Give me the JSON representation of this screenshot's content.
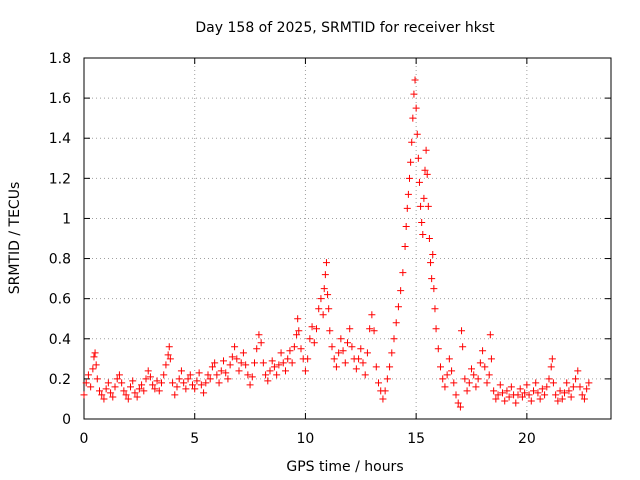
{
  "chart_data": {
    "type": "scatter",
    "title": "Day 158 of 2025, SRMTID for receiver hkst",
    "xlabel": "GPS time / hours",
    "ylabel": "SRMTID / TECUs",
    "xlim": [
      0,
      23.8
    ],
    "ylim": [
      0,
      1.8
    ],
    "xticks": [
      0,
      5,
      10,
      15,
      20
    ],
    "xtick_labels": [
      "0",
      "5",
      "10",
      "15",
      "20"
    ],
    "yticks": [
      0,
      0.2,
      0.4,
      0.6,
      0.8,
      1,
      1.2,
      1.4,
      1.6,
      1.8
    ],
    "ytick_labels": [
      "0",
      "0.2",
      "0.4",
      "0.6",
      "0.8",
      "1",
      "1.2",
      "1.4",
      "1.6",
      "1.8"
    ],
    "grid": true,
    "marker": "+",
    "color": "#ff0000",
    "series": [
      {
        "name": "SRMTID",
        "points": [
          [
            0.0,
            0.12
          ],
          [
            0.1,
            0.18
          ],
          [
            0.2,
            0.22
          ],
          [
            0.3,
            0.16
          ],
          [
            0.4,
            0.25
          ],
          [
            0.45,
            0.31
          ],
          [
            0.5,
            0.33
          ],
          [
            0.55,
            0.27
          ],
          [
            0.6,
            0.2
          ],
          [
            0.7,
            0.14
          ],
          [
            0.8,
            0.12
          ],
          [
            0.9,
            0.1
          ],
          [
            1.0,
            0.15
          ],
          [
            1.1,
            0.18
          ],
          [
            1.2,
            0.13
          ],
          [
            1.3,
            0.11
          ],
          [
            1.4,
            0.16
          ],
          [
            1.5,
            0.2
          ],
          [
            1.6,
            0.22
          ],
          [
            1.7,
            0.18
          ],
          [
            1.8,
            0.14
          ],
          [
            1.9,
            0.12
          ],
          [
            2.0,
            0.1
          ],
          [
            2.1,
            0.16
          ],
          [
            2.2,
            0.19
          ],
          [
            2.3,
            0.13
          ],
          [
            2.4,
            0.11
          ],
          [
            2.5,
            0.15
          ],
          [
            2.6,
            0.17
          ],
          [
            2.7,
            0.14
          ],
          [
            2.8,
            0.2
          ],
          [
            2.9,
            0.24
          ],
          [
            3.0,
            0.21
          ],
          [
            3.1,
            0.17
          ],
          [
            3.2,
            0.15
          ],
          [
            3.3,
            0.19
          ],
          [
            3.4,
            0.14
          ],
          [
            3.5,
            0.18
          ],
          [
            3.6,
            0.22
          ],
          [
            3.7,
            0.27
          ],
          [
            3.8,
            0.32
          ],
          [
            3.85,
            0.36
          ],
          [
            3.9,
            0.3
          ],
          [
            4.0,
            0.18
          ],
          [
            4.1,
            0.12
          ],
          [
            4.2,
            0.16
          ],
          [
            4.3,
            0.2
          ],
          [
            4.4,
            0.24
          ],
          [
            4.5,
            0.18
          ],
          [
            4.6,
            0.15
          ],
          [
            4.7,
            0.2
          ],
          [
            4.8,
            0.22
          ],
          [
            4.9,
            0.17
          ],
          [
            5.0,
            0.15
          ],
          [
            5.1,
            0.19
          ],
          [
            5.2,
            0.23
          ],
          [
            5.3,
            0.17
          ],
          [
            5.4,
            0.13
          ],
          [
            5.5,
            0.18
          ],
          [
            5.6,
            0.22
          ],
          [
            5.7,
            0.2
          ],
          [
            5.8,
            0.26
          ],
          [
            5.9,
            0.28
          ],
          [
            6.0,
            0.22
          ],
          [
            6.1,
            0.18
          ],
          [
            6.2,
            0.24
          ],
          [
            6.3,
            0.29
          ],
          [
            6.4,
            0.23
          ],
          [
            6.5,
            0.2
          ],
          [
            6.6,
            0.27
          ],
          [
            6.7,
            0.31
          ],
          [
            6.8,
            0.36
          ],
          [
            6.9,
            0.3
          ],
          [
            7.0,
            0.24
          ],
          [
            7.1,
            0.28
          ],
          [
            7.2,
            0.33
          ],
          [
            7.3,
            0.27
          ],
          [
            7.4,
            0.22
          ],
          [
            7.5,
            0.17
          ],
          [
            7.6,
            0.21
          ],
          [
            7.7,
            0.28
          ],
          [
            7.8,
            0.35
          ],
          [
            7.9,
            0.42
          ],
          [
            8.0,
            0.38
          ],
          [
            8.1,
            0.28
          ],
          [
            8.2,
            0.22
          ],
          [
            8.3,
            0.19
          ],
          [
            8.4,
            0.24
          ],
          [
            8.5,
            0.29
          ],
          [
            8.6,
            0.26
          ],
          [
            8.7,
            0.22
          ],
          [
            8.8,
            0.27
          ],
          [
            8.9,
            0.33
          ],
          [
            9.0,
            0.28
          ],
          [
            9.1,
            0.24
          ],
          [
            9.2,
            0.3
          ],
          [
            9.3,
            0.34
          ],
          [
            9.4,
            0.28
          ],
          [
            9.5,
            0.36
          ],
          [
            9.6,
            0.42
          ],
          [
            9.65,
            0.5
          ],
          [
            9.7,
            0.44
          ],
          [
            9.8,
            0.35
          ],
          [
            9.9,
            0.3
          ],
          [
            10.0,
            0.24
          ],
          [
            10.1,
            0.3
          ],
          [
            10.2,
            0.4
          ],
          [
            10.3,
            0.46
          ],
          [
            10.4,
            0.38
          ],
          [
            10.5,
            0.45
          ],
          [
            10.6,
            0.55
          ],
          [
            10.7,
            0.6
          ],
          [
            10.8,
            0.52
          ],
          [
            10.85,
            0.65
          ],
          [
            10.9,
            0.72
          ],
          [
            10.95,
            0.78
          ],
          [
            11.0,
            0.62
          ],
          [
            11.05,
            0.55
          ],
          [
            11.1,
            0.44
          ],
          [
            11.2,
            0.36
          ],
          [
            11.3,
            0.3
          ],
          [
            11.4,
            0.26
          ],
          [
            11.5,
            0.33
          ],
          [
            11.6,
            0.4
          ],
          [
            11.7,
            0.34
          ],
          [
            11.8,
            0.28
          ],
          [
            11.9,
            0.38
          ],
          [
            12.0,
            0.45
          ],
          [
            12.1,
            0.36
          ],
          [
            12.2,
            0.3
          ],
          [
            12.3,
            0.25
          ],
          [
            12.4,
            0.3
          ],
          [
            12.5,
            0.35
          ],
          [
            12.6,
            0.28
          ],
          [
            12.7,
            0.22
          ],
          [
            12.8,
            0.33
          ],
          [
            12.9,
            0.45
          ],
          [
            13.0,
            0.52
          ],
          [
            13.1,
            0.44
          ],
          [
            13.2,
            0.26
          ],
          [
            13.3,
            0.18
          ],
          [
            13.4,
            0.14
          ],
          [
            13.5,
            0.1
          ],
          [
            13.6,
            0.14
          ],
          [
            13.7,
            0.2
          ],
          [
            13.8,
            0.26
          ],
          [
            13.9,
            0.33
          ],
          [
            14.0,
            0.4
          ],
          [
            14.1,
            0.48
          ],
          [
            14.2,
            0.56
          ],
          [
            14.3,
            0.64
          ],
          [
            14.4,
            0.73
          ],
          [
            14.5,
            0.86
          ],
          [
            14.55,
            0.96
          ],
          [
            14.6,
            1.05
          ],
          [
            14.65,
            1.12
          ],
          [
            14.7,
            1.2
          ],
          [
            14.75,
            1.28
          ],
          [
            14.8,
            1.38
          ],
          [
            14.85,
            1.5
          ],
          [
            14.9,
            1.62
          ],
          [
            14.95,
            1.69
          ],
          [
            15.0,
            1.55
          ],
          [
            15.05,
            1.42
          ],
          [
            15.1,
            1.3
          ],
          [
            15.15,
            1.18
          ],
          [
            15.2,
            1.06
          ],
          [
            15.25,
            0.98
          ],
          [
            15.3,
            0.92
          ],
          [
            15.35,
            1.1
          ],
          [
            15.4,
            1.24
          ],
          [
            15.45,
            1.34
          ],
          [
            15.5,
            1.22
          ],
          [
            15.55,
            1.06
          ],
          [
            15.6,
            0.9
          ],
          [
            15.65,
            0.78
          ],
          [
            15.7,
            0.7
          ],
          [
            15.75,
            0.82
          ],
          [
            15.8,
            0.65
          ],
          [
            15.85,
            0.55
          ],
          [
            15.9,
            0.45
          ],
          [
            16.0,
            0.35
          ],
          [
            16.1,
            0.26
          ],
          [
            16.2,
            0.2
          ],
          [
            16.3,
            0.16
          ],
          [
            16.4,
            0.22
          ],
          [
            16.5,
            0.3
          ],
          [
            16.6,
            0.24
          ],
          [
            16.7,
            0.18
          ],
          [
            16.8,
            0.12
          ],
          [
            16.9,
            0.08
          ],
          [
            17.0,
            0.06
          ],
          [
            17.05,
            0.44
          ],
          [
            17.1,
            0.36
          ],
          [
            17.2,
            0.2
          ],
          [
            17.3,
            0.14
          ],
          [
            17.4,
            0.18
          ],
          [
            17.5,
            0.25
          ],
          [
            17.6,
            0.22
          ],
          [
            17.7,
            0.16
          ],
          [
            17.8,
            0.2
          ],
          [
            17.9,
            0.28
          ],
          [
            18.0,
            0.34
          ],
          [
            18.1,
            0.26
          ],
          [
            18.2,
            0.18
          ],
          [
            18.3,
            0.22
          ],
          [
            18.35,
            0.42
          ],
          [
            18.4,
            0.3
          ],
          [
            18.5,
            0.14
          ],
          [
            18.6,
            0.1
          ],
          [
            18.7,
            0.12
          ],
          [
            18.8,
            0.17
          ],
          [
            18.9,
            0.13
          ],
          [
            19.0,
            0.09
          ],
          [
            19.1,
            0.14
          ],
          [
            19.2,
            0.11
          ],
          [
            19.3,
            0.16
          ],
          [
            19.4,
            0.12
          ],
          [
            19.5,
            0.08
          ],
          [
            19.6,
            0.12
          ],
          [
            19.7,
            0.15
          ],
          [
            19.8,
            0.11
          ],
          [
            19.9,
            0.13
          ],
          [
            20.0,
            0.17
          ],
          [
            20.1,
            0.12
          ],
          [
            20.2,
            0.09
          ],
          [
            20.3,
            0.14
          ],
          [
            20.4,
            0.18
          ],
          [
            20.5,
            0.13
          ],
          [
            20.6,
            0.1
          ],
          [
            20.7,
            0.15
          ],
          [
            20.8,
            0.12
          ],
          [
            20.9,
            0.16
          ],
          [
            21.0,
            0.2
          ],
          [
            21.1,
            0.26
          ],
          [
            21.15,
            0.3
          ],
          [
            21.2,
            0.18
          ],
          [
            21.3,
            0.12
          ],
          [
            21.4,
            0.09
          ],
          [
            21.5,
            0.14
          ],
          [
            21.6,
            0.1
          ],
          [
            21.7,
            0.13
          ],
          [
            21.8,
            0.18
          ],
          [
            21.9,
            0.14
          ],
          [
            22.0,
            0.11
          ],
          [
            22.1,
            0.16
          ],
          [
            22.2,
            0.2
          ],
          [
            22.3,
            0.24
          ],
          [
            22.4,
            0.16
          ],
          [
            22.5,
            0.12
          ],
          [
            22.6,
            0.1
          ],
          [
            22.7,
            0.15
          ],
          [
            22.8,
            0.18
          ]
        ]
      }
    ]
  }
}
